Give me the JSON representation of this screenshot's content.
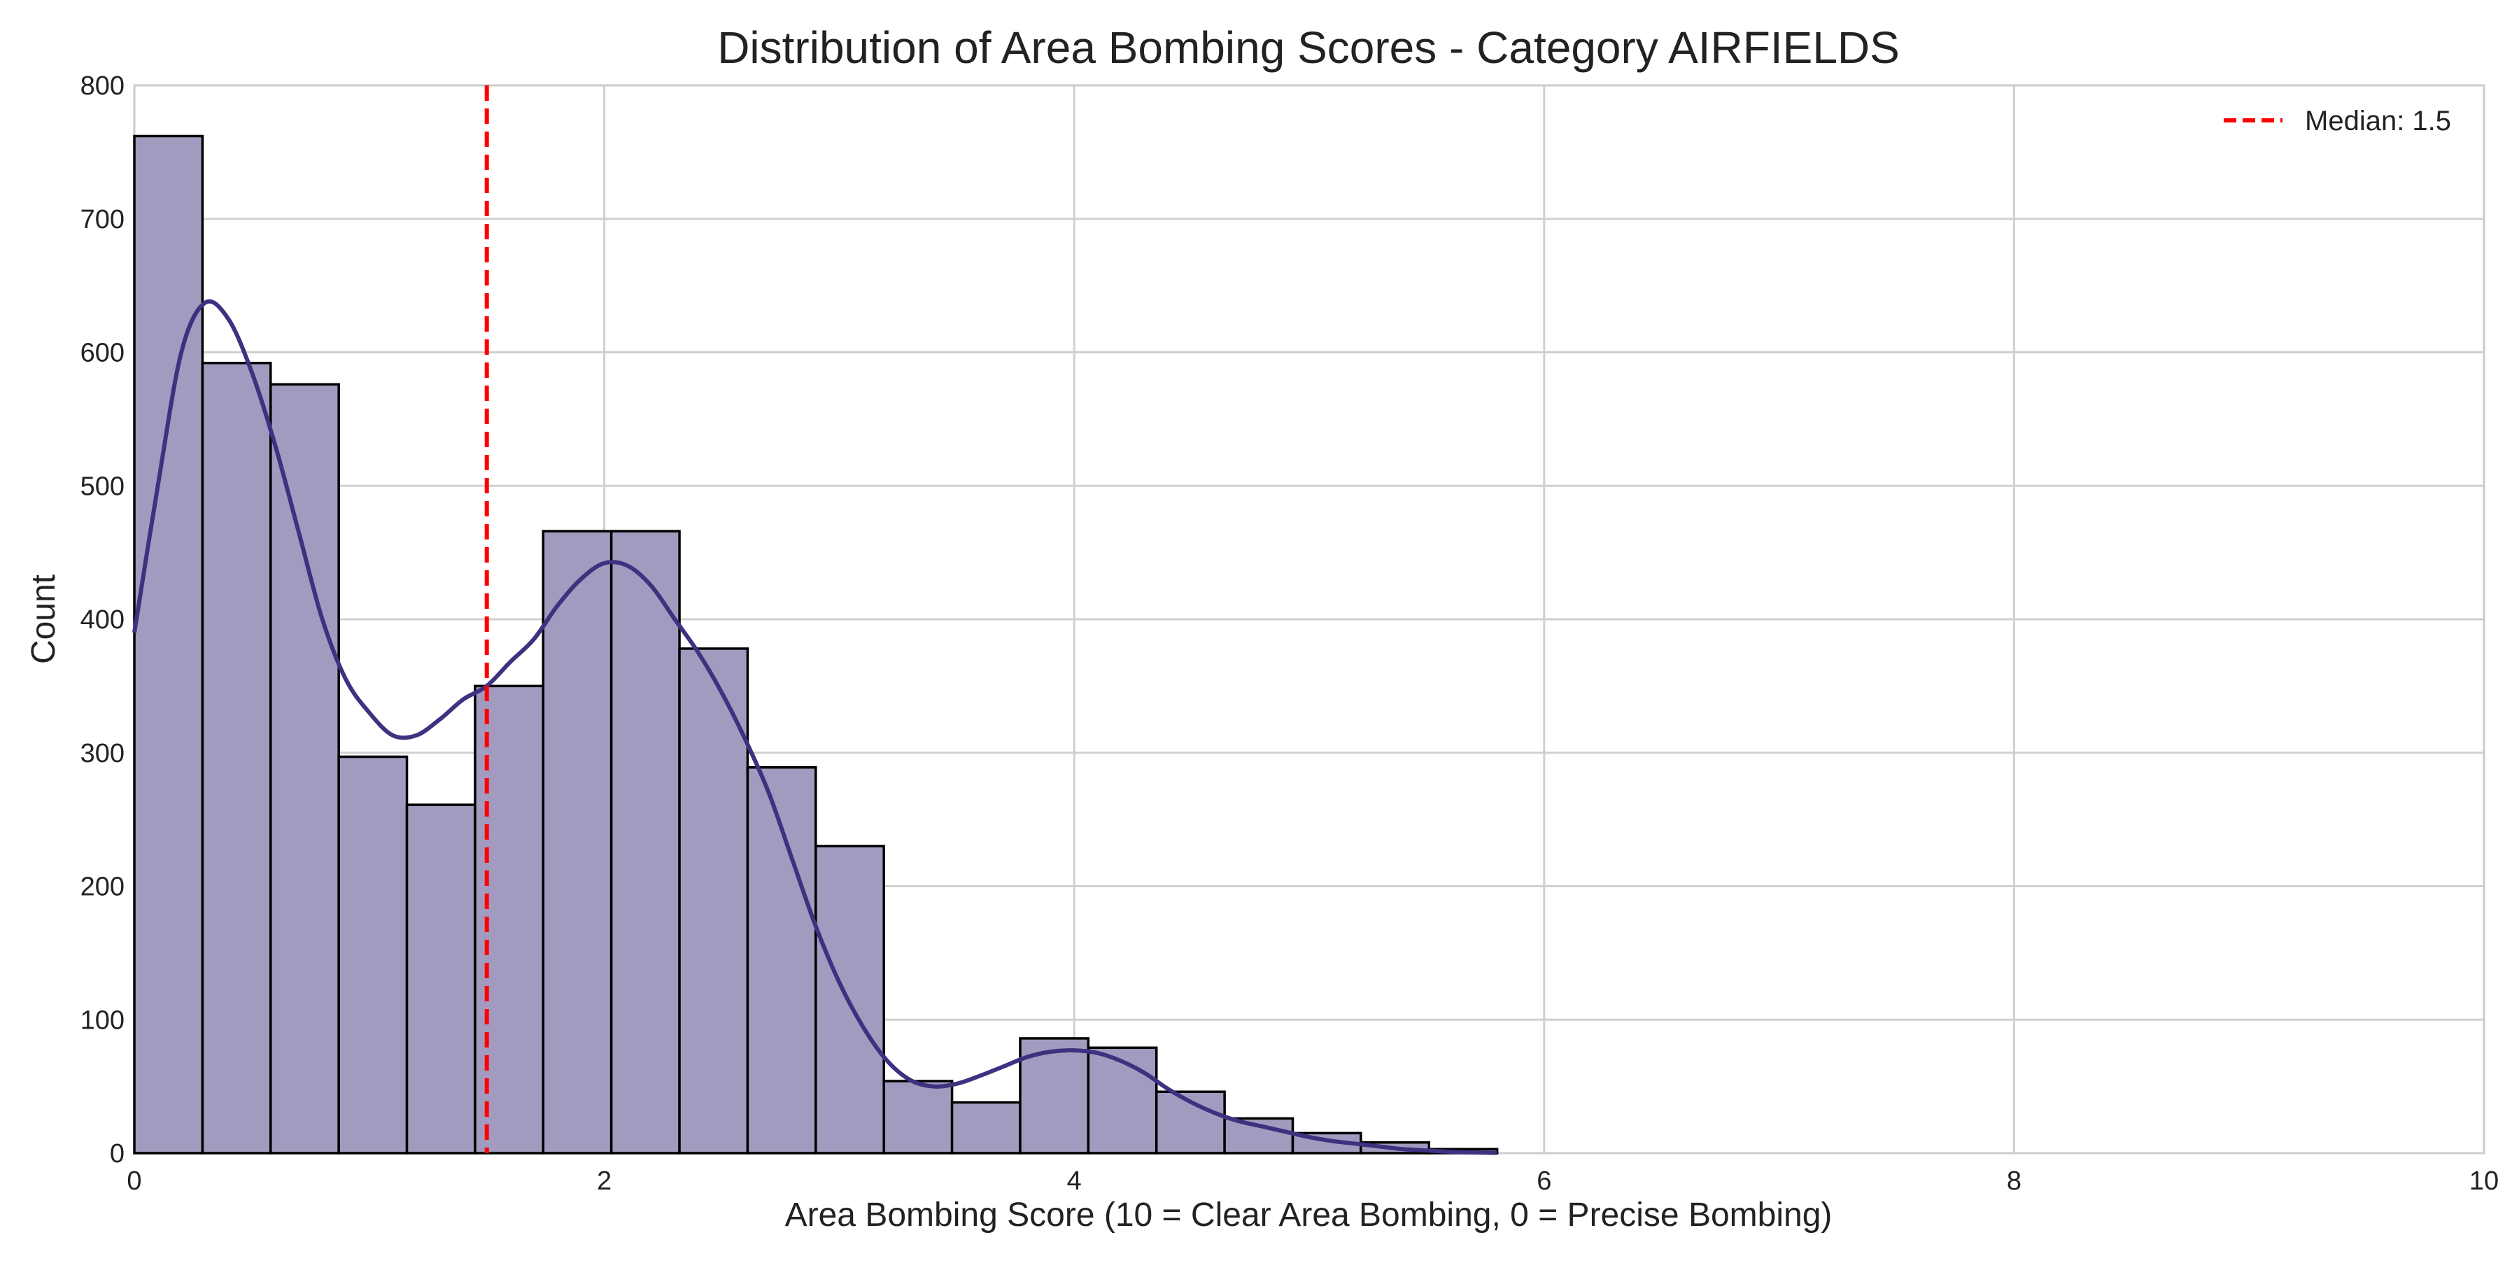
{
  "chart_data": {
    "type": "bar",
    "title": "Distribution of Area Bombing Scores - Category AIRFIELDS",
    "xlabel": "Area Bombing Score (10 = Clear Area Bombing, 0 = Precise Bombing)",
    "ylabel": "Count",
    "xlim": [
      0,
      10
    ],
    "ylim": [
      0,
      800
    ],
    "xticks": [
      0,
      2,
      4,
      6,
      8,
      10
    ],
    "yticks": [
      0,
      100,
      200,
      300,
      400,
      500,
      600,
      700,
      800
    ],
    "grid": true,
    "legend_position": "top-right",
    "bin_width": 0.29,
    "bins": [
      {
        "x0": 0.0,
        "x1": 0.29,
        "count": 762
      },
      {
        "x0": 0.29,
        "x1": 0.58,
        "count": 592
      },
      {
        "x0": 0.58,
        "x1": 0.87,
        "count": 576
      },
      {
        "x0": 0.87,
        "x1": 1.16,
        "count": 297
      },
      {
        "x0": 1.16,
        "x1": 1.45,
        "count": 261
      },
      {
        "x0": 1.45,
        "x1": 1.74,
        "count": 350
      },
      {
        "x0": 1.74,
        "x1": 2.03,
        "count": 466
      },
      {
        "x0": 2.03,
        "x1": 2.32,
        "count": 466
      },
      {
        "x0": 2.32,
        "x1": 2.61,
        "count": 378
      },
      {
        "x0": 2.61,
        "x1": 2.9,
        "count": 289
      },
      {
        "x0": 2.9,
        "x1": 3.19,
        "count": 230
      },
      {
        "x0": 3.19,
        "x1": 3.48,
        "count": 54
      },
      {
        "x0": 3.48,
        "x1": 3.77,
        "count": 38
      },
      {
        "x0": 3.77,
        "x1": 4.06,
        "count": 86
      },
      {
        "x0": 4.06,
        "x1": 4.35,
        "count": 79
      },
      {
        "x0": 4.35,
        "x1": 4.64,
        "count": 46
      },
      {
        "x0": 4.64,
        "x1": 4.93,
        "count": 26
      },
      {
        "x0": 4.93,
        "x1": 5.22,
        "count": 15
      },
      {
        "x0": 5.22,
        "x1": 5.51,
        "count": 8
      },
      {
        "x0": 5.51,
        "x1": 5.8,
        "count": 3
      }
    ],
    "kde": {
      "x": [
        0.0,
        0.1,
        0.2,
        0.3,
        0.4,
        0.5,
        0.6,
        0.7,
        0.8,
        0.9,
        1.0,
        1.1,
        1.2,
        1.3,
        1.4,
        1.5,
        1.6,
        1.7,
        1.8,
        1.9,
        2.0,
        2.1,
        2.2,
        2.3,
        2.4,
        2.5,
        2.6,
        2.7,
        2.8,
        2.9,
        3.0,
        3.1,
        3.2,
        3.3,
        3.4,
        3.5,
        3.6,
        3.7,
        3.8,
        3.9,
        4.0,
        4.1,
        4.2,
        4.3,
        4.4,
        4.5,
        4.6,
        4.7,
        4.8,
        4.9,
        5.0,
        5.1,
        5.2,
        5.3,
        5.4,
        5.5,
        5.6,
        5.7,
        5.8
      ],
      "y": [
        390,
        500,
        600,
        637,
        625,
        585,
        530,
        465,
        400,
        355,
        330,
        313,
        313,
        325,
        340,
        350,
        368,
        385,
        410,
        430,
        442,
        440,
        425,
        400,
        375,
        345,
        310,
        270,
        220,
        170,
        128,
        95,
        70,
        55,
        50,
        52,
        58,
        65,
        72,
        76,
        77,
        75,
        69,
        60,
        48,
        38,
        30,
        24,
        20,
        16,
        12,
        9,
        7,
        5,
        3,
        2,
        1,
        0.5,
        0.2
      ],
      "color": "#3f3180"
    },
    "median": {
      "value": 1.5,
      "label": "Median: 1.5",
      "color": "#ff0000"
    },
    "colors": {
      "bar_fill": "#a29bbf",
      "bar_edge": "#000000",
      "grid": "#d0d0d0",
      "axes": "#cccccc"
    }
  }
}
